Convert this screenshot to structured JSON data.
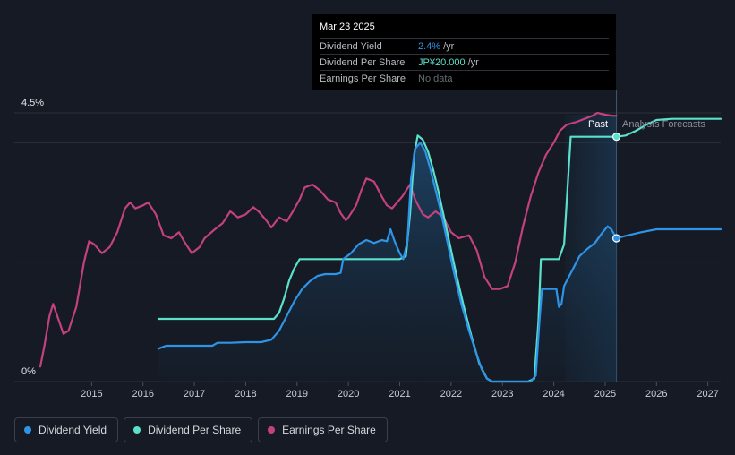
{
  "tooltip": {
    "date": "Mar 23 2025",
    "rows": [
      {
        "name": "Dividend Yield",
        "value": "2.4%",
        "unit": "/yr"
      },
      {
        "name": "Dividend Per Share",
        "value": "JP¥20.000",
        "unit": "/yr"
      },
      {
        "name": "Earnings Per Share",
        "value": "No data",
        "unit": ""
      }
    ]
  },
  "regions": {
    "past_label": "Past",
    "forecast_label": "Analysts Forecasts"
  },
  "legend": [
    {
      "label": "Dividend Yield",
      "color": "#2e94e8"
    },
    {
      "label": "Dividend Per Share",
      "color": "#5ce0cc"
    },
    {
      "label": "Earnings Per Share",
      "color": "#c3417e"
    }
  ],
  "chart_data": {
    "type": "line",
    "y_tick_labels": [
      "4.5%",
      "0%"
    ],
    "ylim": [
      0,
      4.5
    ],
    "xlim": [
      2014.0,
      2027.25
    ],
    "x_tick_labels": [
      "2015",
      "2016",
      "2017",
      "2018",
      "2019",
      "2020",
      "2021",
      "2022",
      "2023",
      "2024",
      "2025",
      "2026",
      "2027"
    ],
    "x_ticks": [
      2015,
      2016,
      2017,
      2018,
      2019,
      2020,
      2021,
      2022,
      2023,
      2024,
      2025,
      2026,
      2027
    ],
    "past_end": 2025.22,
    "forecast_shade_start": 2024.22,
    "colors": {
      "yield": "#2e94e8",
      "dps": "#5ce0cc",
      "eps": "#c3417e",
      "grid": "#2b303b",
      "background": "#151a24"
    },
    "series": [
      {
        "name": "Earnings Per Share",
        "key": "eps",
        "points": [
          [
            2014.0,
            0.25
          ],
          [
            2014.08,
            0.6
          ],
          [
            2014.18,
            1.1
          ],
          [
            2014.25,
            1.3
          ],
          [
            2014.35,
            1.05
          ],
          [
            2014.45,
            0.8
          ],
          [
            2014.55,
            0.85
          ],
          [
            2014.7,
            1.25
          ],
          [
            2014.85,
            2.0
          ],
          [
            2014.95,
            2.35
          ],
          [
            2015.05,
            2.3
          ],
          [
            2015.2,
            2.15
          ],
          [
            2015.35,
            2.25
          ],
          [
            2015.5,
            2.5
          ],
          [
            2015.65,
            2.9
          ],
          [
            2015.75,
            3.0
          ],
          [
            2015.85,
            2.9
          ],
          [
            2016.0,
            2.95
          ],
          [
            2016.1,
            3.0
          ],
          [
            2016.25,
            2.8
          ],
          [
            2016.4,
            2.45
          ],
          [
            2016.55,
            2.4
          ],
          [
            2016.7,
            2.5
          ],
          [
            2016.8,
            2.35
          ],
          [
            2016.95,
            2.15
          ],
          [
            2017.1,
            2.25
          ],
          [
            2017.2,
            2.4
          ],
          [
            2017.4,
            2.55
          ],
          [
            2017.55,
            2.65
          ],
          [
            2017.7,
            2.85
          ],
          [
            2017.85,
            2.75
          ],
          [
            2018.0,
            2.8
          ],
          [
            2018.15,
            2.92
          ],
          [
            2018.25,
            2.85
          ],
          [
            2018.4,
            2.7
          ],
          [
            2018.5,
            2.58
          ],
          [
            2018.65,
            2.75
          ],
          [
            2018.8,
            2.68
          ],
          [
            2018.92,
            2.85
          ],
          [
            2019.05,
            3.05
          ],
          [
            2019.15,
            3.25
          ],
          [
            2019.3,
            3.3
          ],
          [
            2019.45,
            3.2
          ],
          [
            2019.6,
            3.05
          ],
          [
            2019.75,
            3.0
          ],
          [
            2019.85,
            2.82
          ],
          [
            2019.95,
            2.7
          ],
          [
            2020.0,
            2.75
          ],
          [
            2020.15,
            2.95
          ],
          [
            2020.25,
            3.2
          ],
          [
            2020.35,
            3.4
          ],
          [
            2020.5,
            3.35
          ],
          [
            2020.65,
            3.1
          ],
          [
            2020.75,
            2.95
          ],
          [
            2020.85,
            2.9
          ],
          [
            2020.95,
            3.0
          ],
          [
            2021.05,
            3.1
          ],
          [
            2021.2,
            3.3
          ],
          [
            2021.3,
            3.05
          ],
          [
            2021.45,
            2.8
          ],
          [
            2021.55,
            2.75
          ],
          [
            2021.7,
            2.85
          ],
          [
            2021.85,
            2.75
          ],
          [
            2022.0,
            2.5
          ],
          [
            2022.15,
            2.4
          ],
          [
            2022.35,
            2.45
          ],
          [
            2022.5,
            2.2
          ],
          [
            2022.65,
            1.75
          ],
          [
            2022.8,
            1.55
          ],
          [
            2022.95,
            1.55
          ],
          [
            2023.1,
            1.6
          ],
          [
            2023.25,
            2.0
          ],
          [
            2023.4,
            2.6
          ],
          [
            2023.55,
            3.1
          ],
          [
            2023.7,
            3.5
          ],
          [
            2023.85,
            3.8
          ],
          [
            2024.0,
            4.0
          ],
          [
            2024.12,
            4.2
          ],
          [
            2024.25,
            4.3
          ],
          [
            2024.45,
            4.35
          ],
          [
            2024.6,
            4.4
          ],
          [
            2024.75,
            4.45
          ],
          [
            2024.85,
            4.5
          ],
          [
            2025.0,
            4.47
          ],
          [
            2025.15,
            4.45
          ],
          [
            2025.22,
            4.45
          ]
        ]
      },
      {
        "name": "Dividend Per Share",
        "key": "dps",
        "points": [
          [
            2016.3,
            1.05
          ],
          [
            2016.6,
            1.05
          ],
          [
            2017.0,
            1.05
          ],
          [
            2017.5,
            1.05
          ],
          [
            2018.0,
            1.05
          ],
          [
            2018.55,
            1.05
          ],
          [
            2018.65,
            1.15
          ],
          [
            2018.75,
            1.4
          ],
          [
            2018.85,
            1.7
          ],
          [
            2018.95,
            1.9
          ],
          [
            2019.05,
            2.05
          ],
          [
            2019.2,
            2.05
          ],
          [
            2019.5,
            2.05
          ],
          [
            2020.0,
            2.05
          ],
          [
            2020.5,
            2.05
          ],
          [
            2021.0,
            2.05
          ],
          [
            2021.12,
            2.1
          ],
          [
            2021.2,
            2.8
          ],
          [
            2021.28,
            3.8
          ],
          [
            2021.35,
            4.12
          ],
          [
            2021.45,
            4.05
          ],
          [
            2021.55,
            3.85
          ],
          [
            2021.65,
            3.55
          ],
          [
            2021.75,
            3.2
          ],
          [
            2021.85,
            2.8
          ],
          [
            2021.95,
            2.4
          ],
          [
            2022.1,
            1.8
          ],
          [
            2022.25,
            1.25
          ],
          [
            2022.4,
            0.75
          ],
          [
            2022.55,
            0.3
          ],
          [
            2022.7,
            0.05
          ],
          [
            2022.8,
            0.0
          ],
          [
            2023.0,
            0.0
          ],
          [
            2023.3,
            0.0
          ],
          [
            2023.5,
            0.0
          ],
          [
            2023.62,
            0.05
          ],
          [
            2023.7,
            1.0
          ],
          [
            2023.75,
            2.05
          ],
          [
            2023.95,
            2.05
          ],
          [
            2024.1,
            2.05
          ],
          [
            2024.2,
            2.3
          ],
          [
            2024.28,
            3.4
          ],
          [
            2024.33,
            4.1
          ],
          [
            2024.4,
            4.1
          ],
          [
            2024.6,
            4.1
          ],
          [
            2024.8,
            4.1
          ],
          [
            2025.0,
            4.1
          ],
          [
            2025.22,
            4.1
          ],
          [
            2025.4,
            4.12
          ],
          [
            2025.6,
            4.2
          ],
          [
            2025.8,
            4.3
          ],
          [
            2026.0,
            4.38
          ],
          [
            2026.3,
            4.4
          ],
          [
            2026.7,
            4.4
          ],
          [
            2027.25,
            4.4
          ]
        ]
      },
      {
        "name": "Dividend Yield",
        "key": "yield",
        "points": [
          [
            2016.3,
            0.55
          ],
          [
            2016.45,
            0.6
          ],
          [
            2016.7,
            0.6
          ],
          [
            2017.0,
            0.6
          ],
          [
            2017.35,
            0.6
          ],
          [
            2017.45,
            0.65
          ],
          [
            2017.7,
            0.65
          ],
          [
            2018.0,
            0.66
          ],
          [
            2018.3,
            0.66
          ],
          [
            2018.5,
            0.7
          ],
          [
            2018.65,
            0.85
          ],
          [
            2018.8,
            1.1
          ],
          [
            2018.95,
            1.35
          ],
          [
            2019.1,
            1.55
          ],
          [
            2019.25,
            1.68
          ],
          [
            2019.4,
            1.77
          ],
          [
            2019.55,
            1.8
          ],
          [
            2019.75,
            1.8
          ],
          [
            2019.85,
            1.82
          ],
          [
            2019.9,
            2.05
          ],
          [
            2020.05,
            2.15
          ],
          [
            2020.2,
            2.3
          ],
          [
            2020.35,
            2.37
          ],
          [
            2020.5,
            2.32
          ],
          [
            2020.65,
            2.37
          ],
          [
            2020.75,
            2.35
          ],
          [
            2020.82,
            2.55
          ],
          [
            2020.9,
            2.35
          ],
          [
            2021.0,
            2.15
          ],
          [
            2021.07,
            2.05
          ],
          [
            2021.15,
            2.35
          ],
          [
            2021.22,
            3.4
          ],
          [
            2021.3,
            3.9
          ],
          [
            2021.4,
            4.0
          ],
          [
            2021.5,
            3.85
          ],
          [
            2021.6,
            3.55
          ],
          [
            2021.7,
            3.2
          ],
          [
            2021.8,
            2.85
          ],
          [
            2021.9,
            2.45
          ],
          [
            2022.05,
            1.85
          ],
          [
            2022.2,
            1.3
          ],
          [
            2022.35,
            0.85
          ],
          [
            2022.5,
            0.45
          ],
          [
            2022.6,
            0.2
          ],
          [
            2022.7,
            0.05
          ],
          [
            2022.8,
            0.0
          ],
          [
            2023.0,
            0.0
          ],
          [
            2023.3,
            0.0
          ],
          [
            2023.55,
            0.0
          ],
          [
            2023.65,
            0.1
          ],
          [
            2023.72,
            1.0
          ],
          [
            2023.77,
            1.55
          ],
          [
            2023.95,
            1.55
          ],
          [
            2024.05,
            1.55
          ],
          [
            2024.1,
            1.25
          ],
          [
            2024.15,
            1.3
          ],
          [
            2024.2,
            1.6
          ],
          [
            2024.35,
            1.85
          ],
          [
            2024.5,
            2.1
          ],
          [
            2024.65,
            2.22
          ],
          [
            2024.8,
            2.32
          ],
          [
            2024.95,
            2.5
          ],
          [
            2025.05,
            2.6
          ],
          [
            2025.12,
            2.55
          ],
          [
            2025.22,
            2.4
          ],
          [
            2025.4,
            2.44
          ],
          [
            2025.7,
            2.5
          ],
          [
            2026.0,
            2.55
          ],
          [
            2026.3,
            2.55
          ],
          [
            2026.8,
            2.55
          ],
          [
            2027.25,
            2.55
          ]
        ]
      }
    ],
    "markers": [
      {
        "key": "dps",
        "x": 2025.22,
        "y": 4.1
      },
      {
        "key": "yield",
        "x": 2025.22,
        "y": 2.4
      }
    ]
  }
}
